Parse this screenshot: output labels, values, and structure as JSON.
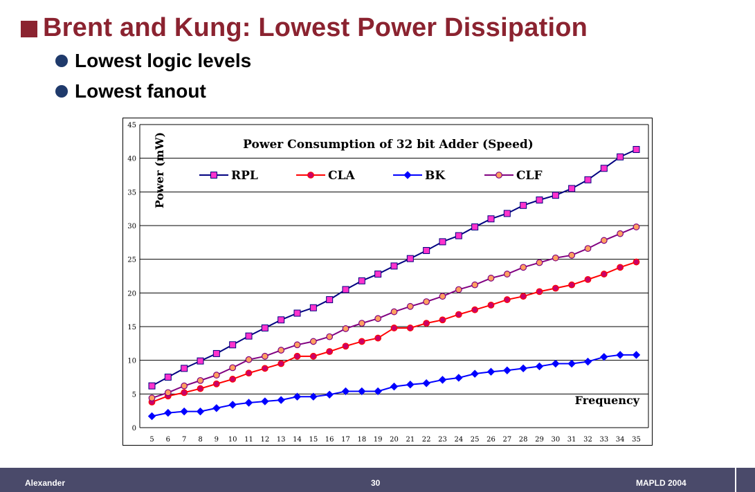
{
  "slide": {
    "title": "Brent and Kung: Lowest Power Dissipation",
    "bullets": [
      "Lowest logic levels",
      "Lowest fanout"
    ]
  },
  "footer": {
    "author": "Alexander",
    "page": "30",
    "event": "MAPLD 2004"
  },
  "colors": {
    "title": "#8b2330",
    "bullet": "#1f3a6b",
    "footer_bg": "#4a4a6a"
  },
  "chart_data": {
    "type": "line",
    "title": "Power Consumption of 32 bit Adder (Speed)",
    "ylabel": "Power (mW)",
    "xlabel": "Frequency",
    "ylim": [
      0,
      45
    ],
    "yticks": [
      0,
      5,
      10,
      15,
      20,
      25,
      30,
      35,
      40,
      45
    ],
    "grid": "horizontal",
    "legend_position": "top",
    "x": [
      5,
      6,
      7,
      8,
      9,
      10,
      11,
      12,
      13,
      14,
      15,
      16,
      17,
      18,
      19,
      20,
      21,
      22,
      23,
      24,
      25,
      26,
      27,
      28,
      29,
      30,
      31,
      32,
      33,
      34,
      35
    ],
    "series": [
      {
        "name": "RPL",
        "color": "#000080",
        "marker": "square",
        "marker_color": "#ff33cc",
        "values": [
          6.2,
          7.5,
          8.8,
          9.9,
          11.0,
          12.3,
          13.6,
          14.8,
          16.0,
          17.0,
          17.8,
          19.0,
          20.5,
          21.8,
          22.8,
          24.0,
          25.1,
          26.3,
          27.6,
          28.5,
          29.8,
          31.0,
          31.8,
          33.0,
          33.8,
          34.5,
          35.5,
          36.8,
          38.5,
          40.2,
          41.3
        ]
      },
      {
        "name": "CLA",
        "color": "#ff0000",
        "marker": "circle",
        "marker_color": "#cc0066",
        "values": [
          3.8,
          4.7,
          5.2,
          5.8,
          6.5,
          7.2,
          8.1,
          8.8,
          9.5,
          10.6,
          10.6,
          11.3,
          12.1,
          12.8,
          13.3,
          14.8,
          14.8,
          15.5,
          16.0,
          16.8,
          17.5,
          18.2,
          19.0,
          19.5,
          20.2,
          20.7,
          21.2,
          22.0,
          22.8,
          23.8,
          24.6
        ]
      },
      {
        "name": "BK",
        "color": "#0000ff",
        "marker": "diamond",
        "marker_color": "#0000ff",
        "values": [
          1.7,
          2.2,
          2.4,
          2.4,
          2.9,
          3.4,
          3.7,
          3.9,
          4.1,
          4.6,
          4.6,
          4.9,
          5.4,
          5.4,
          5.4,
          6.1,
          6.4,
          6.6,
          7.1,
          7.4,
          8.0,
          8.3,
          8.5,
          8.8,
          9.1,
          9.5,
          9.5,
          9.8,
          10.5,
          10.8,
          10.8
        ]
      },
      {
        "name": "CLF",
        "color": "#800080",
        "marker": "circle",
        "marker_color": "#ffa060",
        "values": [
          4.4,
          5.2,
          6.2,
          7.0,
          7.8,
          8.9,
          10.1,
          10.6,
          11.5,
          12.3,
          12.8,
          13.5,
          14.7,
          15.5,
          16.2,
          17.2,
          18.0,
          18.7,
          19.5,
          20.5,
          21.2,
          22.2,
          22.8,
          23.8,
          24.5,
          25.2,
          25.6,
          26.6,
          27.8,
          28.8,
          29.8
        ]
      }
    ]
  }
}
